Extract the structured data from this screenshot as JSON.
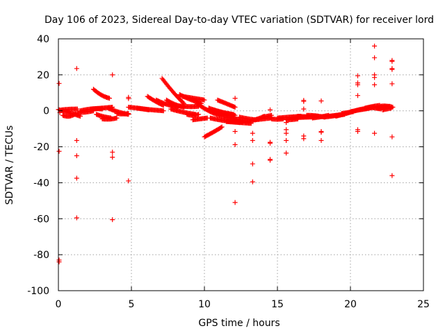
{
  "chart_data": {
    "type": "scatter",
    "title": "Day 106 of 2023, Sidereal Day-to-day VTEC variation (SDTVAR) for receiver lord",
    "xlabel": "GPS time / hours",
    "ylabel": "SDTVAR / TECUs",
    "xlim": [
      0,
      25
    ],
    "ylim": [
      -100,
      40
    ],
    "xticks": [
      0,
      5,
      10,
      15,
      20,
      25
    ],
    "yticks": [
      -100,
      -80,
      -60,
      -40,
      -20,
      0,
      20,
      40
    ],
    "grid": true,
    "marker": "+",
    "color": "#ff0000",
    "series": [
      {
        "name": "SDTVAR",
        "arcs": [
          [
            0.0,
            1.5,
            0.7,
            -1.0,
            -3.0
          ],
          [
            0.3,
            1.2,
            -2.5,
            -4.0,
            -1.5
          ],
          [
            0.2,
            1.3,
            0.5,
            1.0,
            1.0
          ],
          [
            1.3,
            2.4,
            -1.0,
            -1.0,
            0.0
          ],
          [
            1.5,
            3.0,
            0.0,
            1.5,
            1.0
          ],
          [
            2.2,
            3.7,
            1.0,
            1.5,
            2.0
          ],
          [
            2.4,
            3.5,
            12.0,
            8.0,
            7.0
          ],
          [
            2.6,
            3.6,
            -2.0,
            -3.5,
            -4.0
          ],
          [
            3.0,
            4.0,
            -4.5,
            -5.0,
            -4.0
          ],
          [
            3.4,
            4.8,
            1.5,
            -1.0,
            -2.0
          ],
          [
            4.0,
            4.8,
            -1.5,
            -2.0,
            -1.5
          ],
          [
            4.8,
            6.2,
            2.0,
            1.5,
            0.5
          ],
          [
            5.4,
            7.2,
            1.5,
            0.5,
            0.0
          ],
          [
            6.1,
            7.2,
            8.0,
            5.0,
            3.0
          ],
          [
            6.7,
            8.2,
            6.0,
            3.0,
            2.0
          ],
          [
            7.1,
            8.6,
            18.0,
            10.0,
            4.0
          ],
          [
            7.4,
            8.6,
            6.0,
            3.0,
            2.0
          ],
          [
            7.7,
            9.4,
            1.0,
            -1.0,
            -2.0
          ],
          [
            8.0,
            9.6,
            3.0,
            2.0,
            2.5
          ],
          [
            8.3,
            9.8,
            9.0,
            6.0,
            4.0
          ],
          [
            8.5,
            10.0,
            8.0,
            7.0,
            6.0
          ],
          [
            8.8,
            9.6,
            -2.0,
            -3.0,
            -2.0
          ],
          [
            9.2,
            10.2,
            -5.0,
            -4.5,
            -4.0
          ],
          [
            9.5,
            11.2,
            4.0,
            -1.0,
            -3.0
          ],
          [
            10.0,
            11.2,
            -14.5,
            -12.0,
            -9.0
          ],
          [
            10.3,
            12.0,
            1.5,
            -1.0,
            -2.0
          ],
          [
            10.6,
            12.0,
            0.5,
            -1.5,
            -2.5
          ],
          [
            10.9,
            12.1,
            6.0,
            4.0,
            2.0
          ],
          [
            10.4,
            12.6,
            -4.0,
            -6.0,
            -6.5
          ],
          [
            11.0,
            12.1,
            -1.5,
            -2.0,
            -2.5
          ],
          [
            11.3,
            12.2,
            -3.5,
            -4.0,
            -4.5
          ],
          [
            11.5,
            13.2,
            -6.0,
            -6.5,
            -7.0
          ],
          [
            12.1,
            12.9,
            -4.5,
            -5.5,
            -6.0
          ],
          [
            12.4,
            13.5,
            -3.5,
            -4.5,
            -5.0
          ],
          [
            13.0,
            14.1,
            -6.0,
            -5.0,
            -3.0
          ],
          [
            13.5,
            14.6,
            -5.0,
            -4.5,
            -4.0
          ],
          [
            14.0,
            14.6,
            -3.5,
            -3.0,
            -2.5
          ],
          [
            14.6,
            15.4,
            -4.5,
            -5.0,
            -4.5
          ],
          [
            15.0,
            16.6,
            -4.0,
            -3.5,
            -3.0
          ],
          [
            15.6,
            16.4,
            -5.0,
            -5.0,
            -4.5
          ],
          [
            16.0,
            17.5,
            -4.0,
            -3.5,
            -3.5
          ],
          [
            16.4,
            17.8,
            -3.0,
            -3.5,
            -3.0
          ],
          [
            17.0,
            18.2,
            -2.5,
            -2.5,
            -3.5
          ],
          [
            17.4,
            18.5,
            -4.0,
            -3.5,
            -2.5
          ],
          [
            18.2,
            19.4,
            -3.5,
            -3.0,
            -2.0
          ],
          [
            18.5,
            19.6,
            -3.0,
            -2.5,
            -2.0
          ],
          [
            19.0,
            20.1,
            -3.0,
            -2.0,
            -0.5
          ],
          [
            19.4,
            20.2,
            -1.5,
            -1.0,
            -0.5
          ],
          [
            20.0,
            20.6,
            -0.5,
            0.0,
            0.5
          ],
          [
            20.3,
            21.2,
            0.0,
            1.0,
            1.5
          ],
          [
            20.6,
            21.6,
            0.5,
            1.0,
            2.0
          ],
          [
            21.0,
            22.0,
            1.5,
            2.5,
            3.0
          ],
          [
            21.3,
            22.1,
            2.0,
            1.5,
            1.0
          ],
          [
            21.8,
            22.7,
            1.5,
            2.0,
            2.5
          ],
          [
            22.0,
            22.9,
            2.5,
            3.0,
            2.0
          ],
          [
            22.2,
            22.8,
            0.5,
            1.0,
            1.5
          ]
        ],
        "points": [
          [
            0.05,
            15.2
          ],
          [
            0.05,
            -22.5
          ],
          [
            0.05,
            -84.0
          ],
          [
            0.05,
            -83.0
          ],
          [
            0.1,
            -1.0
          ],
          [
            1.25,
            23.5
          ],
          [
            1.25,
            -16.5
          ],
          [
            1.25,
            -25.0
          ],
          [
            1.25,
            -37.5
          ],
          [
            1.25,
            -59.5
          ],
          [
            3.7,
            20.0
          ],
          [
            3.7,
            -23.0
          ],
          [
            3.7,
            -25.8
          ],
          [
            3.7,
            -60.5
          ],
          [
            4.8,
            7.5
          ],
          [
            4.8,
            6.8
          ],
          [
            4.8,
            -39.0
          ],
          [
            12.1,
            7.0
          ],
          [
            12.1,
            -11.5
          ],
          [
            12.1,
            -18.8
          ],
          [
            12.1,
            -51.0
          ],
          [
            13.3,
            -12.5
          ],
          [
            13.3,
            -16.5
          ],
          [
            13.3,
            -29.5
          ],
          [
            13.3,
            -39.5
          ],
          [
            14.5,
            0.5
          ],
          [
            14.5,
            -17.5
          ],
          [
            14.5,
            -18.0
          ],
          [
            14.5,
            -27.0
          ],
          [
            14.5,
            -27.5
          ],
          [
            15.6,
            -6.5
          ],
          [
            15.6,
            -10.5
          ],
          [
            15.6,
            -12.5
          ],
          [
            15.6,
            -16.5
          ],
          [
            15.6,
            -23.5
          ],
          [
            16.8,
            5.8
          ],
          [
            16.8,
            5.2
          ],
          [
            16.8,
            1.0
          ],
          [
            16.8,
            -14.0
          ],
          [
            16.8,
            -15.5
          ],
          [
            18.0,
            5.5
          ],
          [
            18.0,
            -11.5
          ],
          [
            18.0,
            -12.0
          ],
          [
            18.0,
            -16.5
          ],
          [
            20.5,
            19.5
          ],
          [
            20.5,
            15.5
          ],
          [
            20.5,
            14.5
          ],
          [
            20.5,
            8.5
          ],
          [
            20.5,
            -10.5
          ],
          [
            20.5,
            -11.5
          ],
          [
            21.65,
            36.0
          ],
          [
            21.65,
            29.5
          ],
          [
            21.65,
            20.0
          ],
          [
            21.65,
            18.5
          ],
          [
            21.65,
            14.5
          ],
          [
            21.65,
            -12.5
          ],
          [
            22.85,
            28.0
          ],
          [
            22.85,
            27.5
          ],
          [
            22.85,
            23.5
          ],
          [
            22.85,
            23.0
          ],
          [
            22.85,
            15.0
          ],
          [
            22.85,
            -14.5
          ],
          [
            22.85,
            -36.0
          ]
        ]
      }
    ]
  }
}
